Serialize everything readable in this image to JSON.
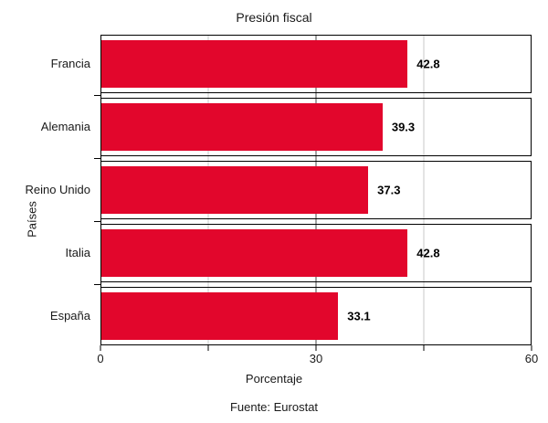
{
  "chart_data": {
    "type": "bar",
    "orientation": "horizontal",
    "title": "Presión fiscal",
    "xlabel": "Porcentaje",
    "ylabel": "Países",
    "source": "Fuente: Eurostat",
    "categories": [
      "Francia",
      "Alemania",
      "Reino Unido",
      "Italia",
      "España"
    ],
    "values": [
      42.8,
      39.3,
      37.3,
      42.8,
      33.1
    ],
    "value_labels": [
      "42.8",
      "39.3",
      "37.3",
      "42.8",
      "33.1"
    ],
    "xlim": [
      0,
      60
    ],
    "xticks": [
      0,
      15,
      30,
      45,
      60
    ],
    "xtick_labels": [
      {
        "value": 0,
        "label": "0"
      },
      {
        "value": 30,
        "label": "30"
      },
      {
        "value": 60,
        "label": "60"
      }
    ],
    "gridlines": {
      "minor": [
        15,
        45
      ],
      "major": [
        30
      ]
    },
    "grid": true,
    "legend": null,
    "colors": {
      "bar": "#e2062c",
      "grid_minor": "#c8c8c8",
      "grid_major": "#474747",
      "frame": "#000000",
      "text": "#1a1a1a"
    }
  }
}
